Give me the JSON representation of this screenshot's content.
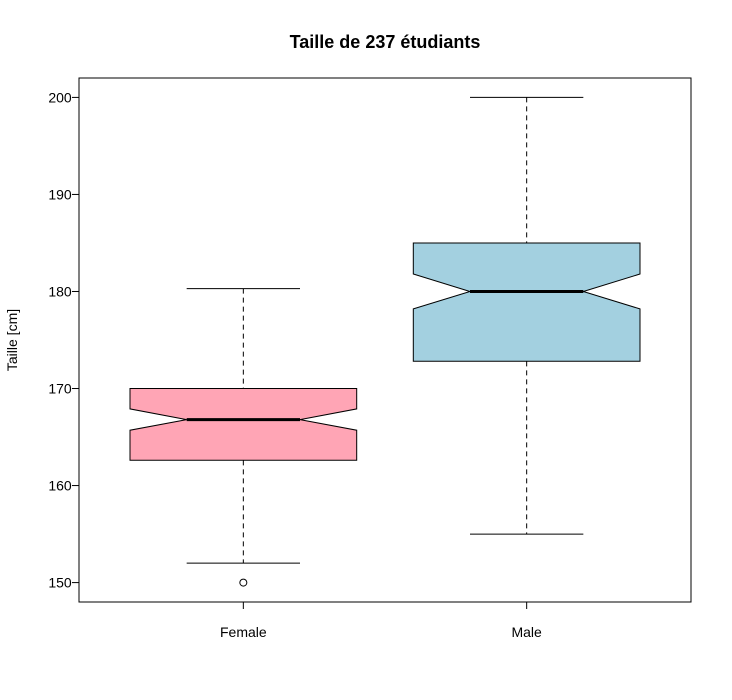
{
  "chart_data": {
    "type": "boxplot",
    "title": "Taille de 237 étudiants",
    "xlabel": "",
    "ylabel": "Taille [cm]",
    "ylim": [
      148,
      202
    ],
    "yticks": [
      150,
      160,
      170,
      180,
      190,
      200
    ],
    "notched": true,
    "grid": false,
    "groups": [
      {
        "name": "Female",
        "color": "#FFA5B5",
        "whisker_low": 152,
        "q1": 162.6,
        "median": 166.8,
        "q3": 170,
        "whisker_high": 180.3,
        "notch_low": 165.7,
        "notch_high": 167.9,
        "outliers": [
          150
        ]
      },
      {
        "name": "Male",
        "color": "#A3D0E0",
        "whisker_low": 155,
        "q1": 172.8,
        "median": 180,
        "q3": 185,
        "whisker_high": 200,
        "notch_low": 178.2,
        "notch_high": 181.8,
        "outliers": []
      }
    ]
  }
}
